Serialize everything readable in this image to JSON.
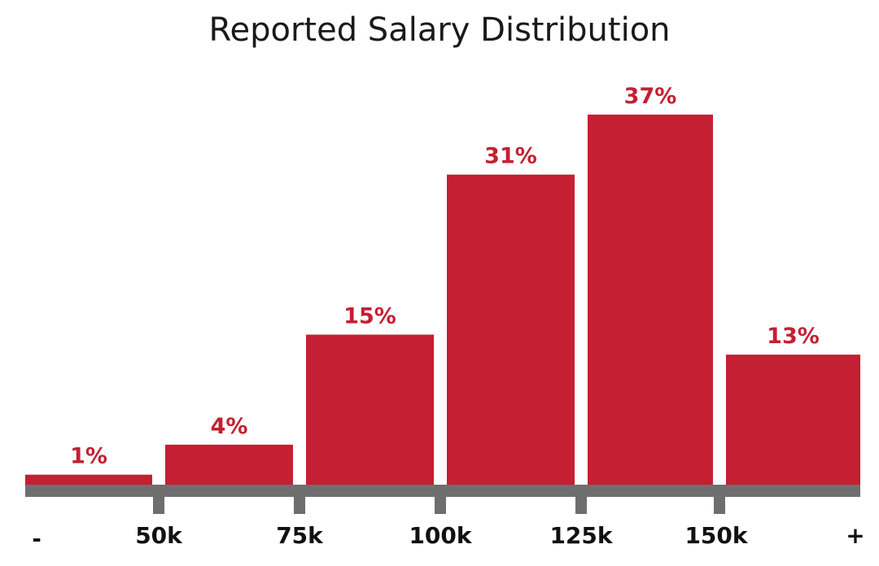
{
  "chart_data": {
    "type": "bar",
    "title": "Reported Salary Distribution",
    "xlabel": "",
    "ylabel": "",
    "categories": [
      "< 50k",
      "50k-75k",
      "75k-100k",
      "100k-125k",
      "125k-150k",
      "150k +"
    ],
    "values": [
      1,
      4,
      15,
      31,
      37,
      13
    ],
    "value_labels": [
      "1%",
      "4%",
      "15%",
      "31%",
      "37%",
      "13%"
    ],
    "tick_labels": [
      "-",
      "50k",
      "75k",
      "100k",
      "125k",
      "150k",
      "+"
    ],
    "ylim": [
      0,
      40
    ],
    "grid": false,
    "legend": "none",
    "colors": {
      "bar": "#c41f33",
      "label": "#c41f33",
      "axis": "#6e6e6e"
    }
  }
}
